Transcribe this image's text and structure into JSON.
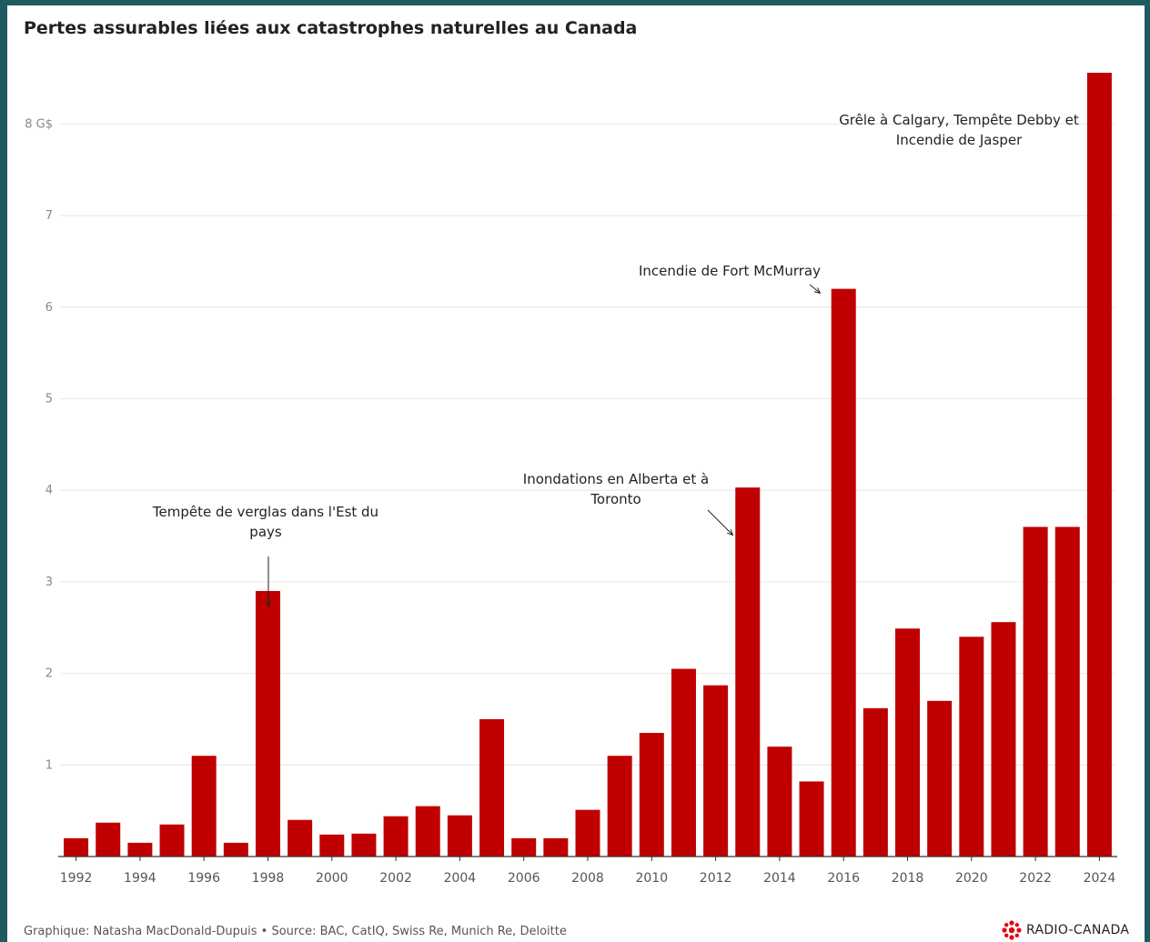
{
  "title": "Pertes assurables liées aux catastrophes naturelles au Canada",
  "footer": "Graphique: Natasha MacDonald-Dupuis • Source: BAC, CatIQ, Swiss Re, Munich Re, Deloitte",
  "logo": {
    "text": "RADIO-CANADA",
    "icon": "radio-canada-gem-icon",
    "color": "#e30613"
  },
  "colors": {
    "bar": "#c00000",
    "grid": "#e6e6e6",
    "axis": "#333333"
  },
  "chart_data": {
    "type": "bar",
    "title": "Pertes assurables liées aux catastrophes naturelles au Canada",
    "xlabel": "",
    "ylabel": "",
    "categories": [
      1992,
      1993,
      1994,
      1995,
      1996,
      1997,
      1998,
      1999,
      2000,
      2001,
      2002,
      2003,
      2004,
      2005,
      2006,
      2007,
      2008,
      2009,
      2010,
      2011,
      2012,
      2013,
      2014,
      2015,
      2016,
      2017,
      2018,
      2019,
      2020,
      2021,
      2022,
      2023,
      2024
    ],
    "values": [
      0.2,
      0.37,
      0.15,
      0.35,
      1.1,
      0.15,
      2.9,
      0.4,
      0.24,
      0.25,
      0.44,
      0.55,
      0.45,
      1.5,
      0.2,
      0.2,
      0.51,
      1.1,
      1.35,
      2.05,
      1.87,
      4.03,
      1.2,
      0.82,
      6.2,
      1.62,
      2.49,
      1.7,
      2.4,
      2.56,
      3.6,
      3.6,
      8.56
    ],
    "ylim": [
      0,
      8.56
    ],
    "yticks": [
      1,
      2,
      3,
      4,
      5,
      6,
      7,
      8
    ],
    "ytick_labels": [
      "1",
      "2",
      "3",
      "4",
      "5",
      "6",
      "7",
      "8 G$"
    ],
    "xticks": [
      "1992",
      "1994",
      "1996",
      "1998",
      "2000",
      "2002",
      "2004",
      "2006",
      "2008",
      "2010",
      "2012",
      "2014",
      "2016",
      "2018",
      "2020",
      "2022",
      "2024"
    ],
    "grid": true,
    "annotations": [
      {
        "year": 1998,
        "lines": [
          "Tempête de verglas dans l'Est du",
          "pays"
        ]
      },
      {
        "year": 2013,
        "lines": [
          "Inondations en Alberta et à",
          "Toronto"
        ]
      },
      {
        "year": 2016,
        "lines": [
          "Incendie de Fort McMurray"
        ]
      },
      {
        "year": 2024,
        "lines": [
          "Grêle à Calgary, Tempête Debby et",
          "Incendie de Jasper"
        ]
      }
    ]
  }
}
